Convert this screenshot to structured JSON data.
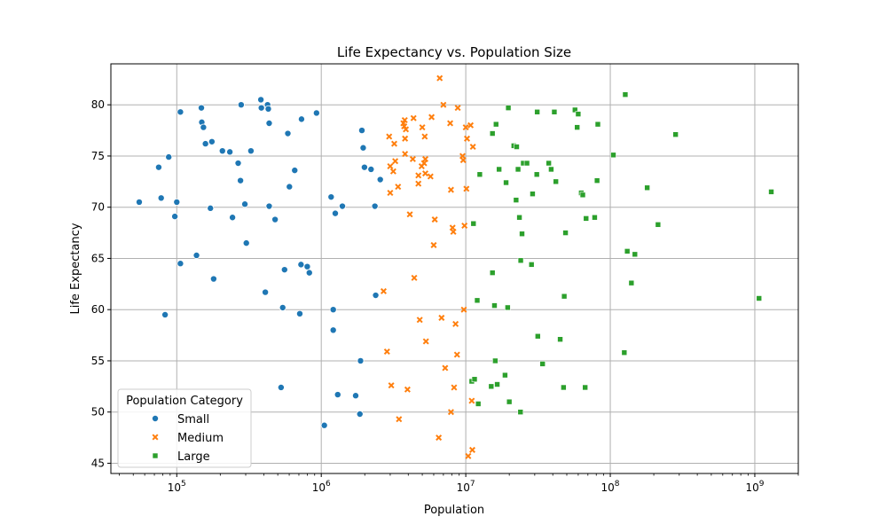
{
  "chart_data": {
    "type": "scatter",
    "title": "Life Expectancy vs. Population Size",
    "xlabel": "Population",
    "ylabel": "Life Expectancy",
    "xscale": "log",
    "xlim": [
      35000,
      2000000000
    ],
    "ylim": [
      44,
      84
    ],
    "x_tick_labels": [
      "10^5",
      "10^6",
      "10^7",
      "10^8",
      "10^9"
    ],
    "y_ticks": [
      45,
      50,
      55,
      60,
      65,
      70,
      75,
      80
    ],
    "grid": true,
    "legend": {
      "title": "Population Category",
      "placement": "lower-left",
      "entries": [
        "Small",
        "Medium",
        "Large"
      ]
    },
    "series": [
      {
        "name": "Small",
        "color": "#1f77b4",
        "marker": "circle",
        "points": [
          [
            55000,
            70.5
          ],
          [
            75000,
            73.9
          ],
          [
            78000,
            70.9
          ],
          [
            83000,
            59.5
          ],
          [
            88000,
            74.9
          ],
          [
            97000,
            69.1
          ],
          [
            100000,
            70.5
          ],
          [
            106000,
            79.3
          ],
          [
            106000,
            64.5
          ],
          [
            137000,
            65.3
          ],
          [
            148000,
            79.7
          ],
          [
            149000,
            78.3
          ],
          [
            153000,
            77.8
          ],
          [
            158000,
            76.2
          ],
          [
            171000,
            69.9
          ],
          [
            175000,
            76.4
          ],
          [
            180000,
            63.0
          ],
          [
            207000,
            75.5
          ],
          [
            233000,
            75.4
          ],
          [
            243000,
            69.0
          ],
          [
            266000,
            74.3
          ],
          [
            276000,
            72.6
          ],
          [
            279000,
            80.0
          ],
          [
            296000,
            70.3
          ],
          [
            303000,
            66.5
          ],
          [
            326000,
            75.5
          ],
          [
            382000,
            80.5
          ],
          [
            385000,
            79.7
          ],
          [
            410000,
            61.7
          ],
          [
            425000,
            80.0
          ],
          [
            430000,
            79.6
          ],
          [
            436000,
            70.1
          ],
          [
            436000,
            78.2
          ],
          [
            479000,
            68.8
          ],
          [
            527000,
            52.4
          ],
          [
            541000,
            60.2
          ],
          [
            557000,
            63.9
          ],
          [
            587000,
            77.2
          ],
          [
            602000,
            72.0
          ],
          [
            655000,
            73.6
          ],
          [
            710000,
            59.6
          ],
          [
            724000,
            64.4
          ],
          [
            730000,
            78.6
          ],
          [
            800000,
            64.2
          ],
          [
            827000,
            63.6
          ],
          [
            927000,
            79.2
          ],
          [
            1050000,
            48.7
          ],
          [
            1170000,
            71.0
          ],
          [
            1210000,
            60.0
          ],
          [
            1210000,
            58.0
          ],
          [
            1250000,
            69.4
          ],
          [
            1300000,
            51.7
          ],
          [
            1400000,
            70.1
          ],
          [
            1730000,
            51.6
          ],
          [
            1850000,
            49.8
          ],
          [
            1870000,
            55.0
          ],
          [
            1910000,
            77.5
          ],
          [
            1950000,
            75.8
          ],
          [
            1990000,
            73.9
          ],
          [
            2210000,
            73.7
          ],
          [
            2350000,
            70.1
          ],
          [
            2380000,
            61.4
          ],
          [
            2560000,
            72.7
          ]
        ]
      },
      {
        "name": "Medium",
        "color": "#ff7f0e",
        "marker": "x",
        "points": [
          [
            2700000,
            61.8
          ],
          [
            2850000,
            55.9
          ],
          [
            2950000,
            76.9
          ],
          [
            3000000,
            74.0
          ],
          [
            3000000,
            71.4
          ],
          [
            3050000,
            52.6
          ],
          [
            3150000,
            73.5
          ],
          [
            3200000,
            76.2
          ],
          [
            3250000,
            74.5
          ],
          [
            3400000,
            72.0
          ],
          [
            3450000,
            49.3
          ],
          [
            3700000,
            78.2
          ],
          [
            3750000,
            77.9
          ],
          [
            3780000,
            78.5
          ],
          [
            3800000,
            76.7
          ],
          [
            3800000,
            75.2
          ],
          [
            3850000,
            77.6
          ],
          [
            3950000,
            52.2
          ],
          [
            4100000,
            69.3
          ],
          [
            4300000,
            74.7
          ],
          [
            4350000,
            78.7
          ],
          [
            4400000,
            63.1
          ],
          [
            4700000,
            73.1
          ],
          [
            4700000,
            72.3
          ],
          [
            4800000,
            59.0
          ],
          [
            4950000,
            74.0
          ],
          [
            5000000,
            77.8
          ],
          [
            5150000,
            74.3
          ],
          [
            5200000,
            76.9
          ],
          [
            5250000,
            73.3
          ],
          [
            5250000,
            74.7
          ],
          [
            5300000,
            56.9
          ],
          [
            5700000,
            73.0
          ],
          [
            5800000,
            78.8
          ],
          [
            6000000,
            66.3
          ],
          [
            6100000,
            68.8
          ],
          [
            6500000,
            47.5
          ],
          [
            6600000,
            82.6
          ],
          [
            6800000,
            59.2
          ],
          [
            7000000,
            80.0
          ],
          [
            7200000,
            54.3
          ],
          [
            7800000,
            78.2
          ],
          [
            7900000,
            71.7
          ],
          [
            7900000,
            50.0
          ],
          [
            8100000,
            68.0
          ],
          [
            8200000,
            67.6
          ],
          [
            8300000,
            52.4
          ],
          [
            8500000,
            58.6
          ],
          [
            8700000,
            55.6
          ],
          [
            8800000,
            79.7
          ],
          [
            9500000,
            75.0
          ],
          [
            9600000,
            74.6
          ],
          [
            9700000,
            60.0
          ],
          [
            9800000,
            68.2
          ],
          [
            10000000,
            77.8
          ],
          [
            10100000,
            71.8
          ],
          [
            10200000,
            76.7
          ],
          [
            10400000,
            45.7
          ],
          [
            10800000,
            78.0
          ],
          [
            11000000,
            51.1
          ],
          [
            11100000,
            46.3
          ],
          [
            11200000,
            75.9
          ]
        ]
      },
      {
        "name": "Large",
        "color": "#2ca02c",
        "marker": "square",
        "points": [
          [
            11000000,
            53.0
          ],
          [
            11300000,
            68.4
          ],
          [
            11500000,
            53.2
          ],
          [
            12000000,
            60.9
          ],
          [
            12200000,
            50.8
          ],
          [
            12500000,
            73.2
          ],
          [
            15000000,
            52.5
          ],
          [
            15300000,
            77.2
          ],
          [
            15300000,
            63.6
          ],
          [
            15800000,
            60.4
          ],
          [
            16000000,
            55.0
          ],
          [
            16200000,
            78.1
          ],
          [
            16500000,
            52.7
          ],
          [
            17000000,
            73.7
          ],
          [
            18700000,
            53.6
          ],
          [
            19000000,
            72.4
          ],
          [
            19500000,
            60.2
          ],
          [
            19700000,
            79.7
          ],
          [
            20000000,
            51.0
          ],
          [
            21500000,
            76.0
          ],
          [
            22300000,
            70.7
          ],
          [
            22500000,
            75.9
          ],
          [
            23000000,
            73.7
          ],
          [
            23500000,
            69.0
          ],
          [
            23900000,
            50.0
          ],
          [
            24000000,
            64.8
          ],
          [
            24500000,
            67.4
          ],
          [
            25000000,
            74.3
          ],
          [
            26500000,
            74.3
          ],
          [
            28500000,
            64.4
          ],
          [
            29000000,
            71.3
          ],
          [
            31000000,
            73.2
          ],
          [
            31200000,
            79.3
          ],
          [
            31500000,
            57.4
          ],
          [
            34000000,
            54.7
          ],
          [
            37500000,
            74.3
          ],
          [
            39000000,
            73.7
          ],
          [
            41000000,
            79.3
          ],
          [
            42000000,
            72.5
          ],
          [
            45000000,
            57.1
          ],
          [
            47500000,
            52.4
          ],
          [
            48000000,
            61.3
          ],
          [
            49000000,
            67.5
          ],
          [
            57000000,
            79.5
          ],
          [
            59000000,
            77.8
          ],
          [
            60000000,
            79.1
          ],
          [
            63000000,
            71.4
          ],
          [
            64500000,
            71.2
          ],
          [
            67000000,
            52.4
          ],
          [
            68000000,
            68.9
          ],
          [
            78000000,
            69.0
          ],
          [
            81000000,
            72.6
          ],
          [
            82000000,
            78.1
          ],
          [
            105000000,
            75.1
          ],
          [
            125000000,
            55.8
          ],
          [
            127000000,
            81.0
          ],
          [
            131000000,
            65.7
          ],
          [
            140000000,
            62.6
          ],
          [
            148000000,
            65.4
          ],
          [
            180000000,
            71.9
          ],
          [
            214000000,
            68.3
          ],
          [
            283000000,
            77.1
          ],
          [
            1070000000,
            61.1
          ],
          [
            1300000000,
            71.5
          ]
        ]
      }
    ]
  }
}
